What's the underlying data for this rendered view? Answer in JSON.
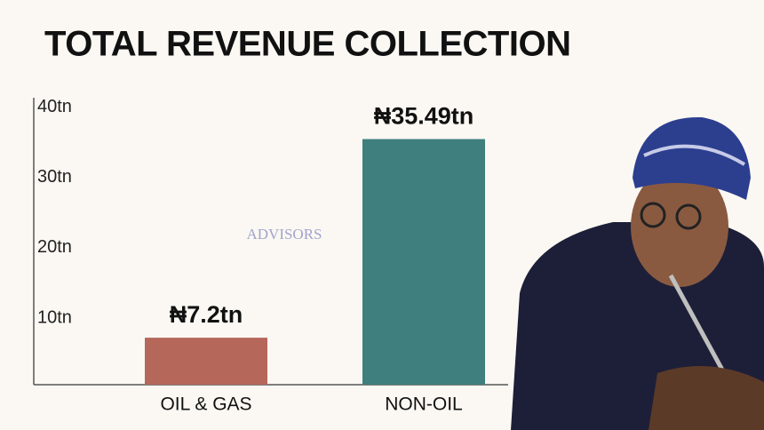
{
  "chart_data": {
    "type": "bar",
    "title": "TOTAL REVENUE COLLECTION",
    "categories": [
      "OIL & GAS",
      "NON-OIL"
    ],
    "values": [
      7.2,
      35.49
    ],
    "value_labels": [
      "₦7.2tn",
      "₦35.49tn"
    ],
    "colors": [
      "#b5675a",
      "#3f7f7d"
    ],
    "ylim": [
      0,
      41
    ],
    "yticks": [
      {
        "value": 10,
        "label": "10tn"
      },
      {
        "value": 20,
        "label": "20tn"
      },
      {
        "value": 30,
        "label": "30tn"
      },
      {
        "value": 40,
        "label": "40tn"
      }
    ],
    "grid": false,
    "watermark": "ADVISORS"
  }
}
